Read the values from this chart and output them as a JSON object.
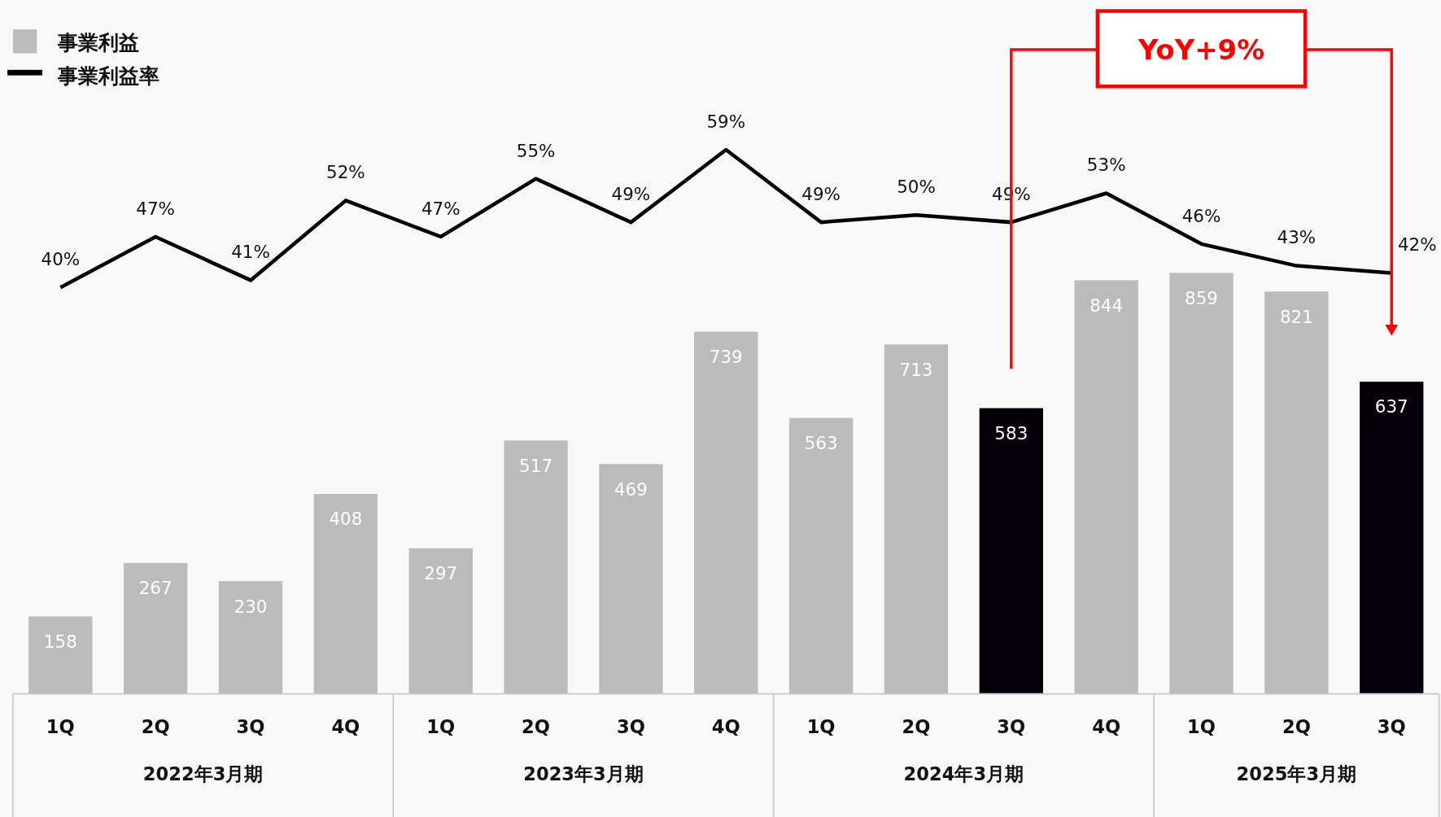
{
  "chart_data": {
    "type": "bar",
    "categories": [
      "1Q",
      "2Q",
      "3Q",
      "4Q",
      "1Q",
      "2Q",
      "3Q",
      "4Q",
      "1Q",
      "2Q",
      "3Q",
      "4Q",
      "1Q",
      "2Q",
      "3Q"
    ],
    "series": [
      {
        "name": "事業利益",
        "color": "#bbbbbb",
        "colors": [
          "#bbbbbb",
          "#bbbbbb",
          "#bbbbbb",
          "#bbbbbb",
          "#bbbbbb",
          "#bbbbbb",
          "#bbbbbb",
          "#bbbbbb",
          "#bbbbbb",
          "#bbbbbb",
          "#050008",
          "#bbbbbb",
          "#bbbbbb",
          "#bbbbbb",
          "#050008"
        ],
        "values": [
          158,
          267,
          230,
          408,
          297,
          517,
          469,
          739,
          563,
          713,
          583,
          844,
          859,
          821,
          637
        ],
        "value_labels": [
          "158",
          "267",
          "230",
          "408",
          "297",
          "517",
          "469",
          "739",
          "563",
          "713",
          "583",
          "844",
          "859",
          "821",
          "637"
        ]
      },
      {
        "name": "事業利益率",
        "type": "line",
        "axis": "y2",
        "color": "#000000",
        "values": [
          40,
          47,
          41,
          52,
          47,
          55,
          49,
          59,
          49,
          50,
          49,
          53,
          46,
          43,
          42
        ],
        "value_labels": [
          "40%",
          "47%",
          "41%",
          "52%",
          "47%",
          "55%",
          "49%",
          "59%",
          "49%",
          "50%",
          "49%",
          "53%",
          "46%",
          "43%",
          "42%"
        ]
      }
    ],
    "tick_labels": "x",
    "legend": "top left",
    "annotations": [
      "YoY+9%",
      "2022年3月期",
      "2023年3月期",
      "2024年3月期",
      "2025年3月期"
    ]
  }
}
